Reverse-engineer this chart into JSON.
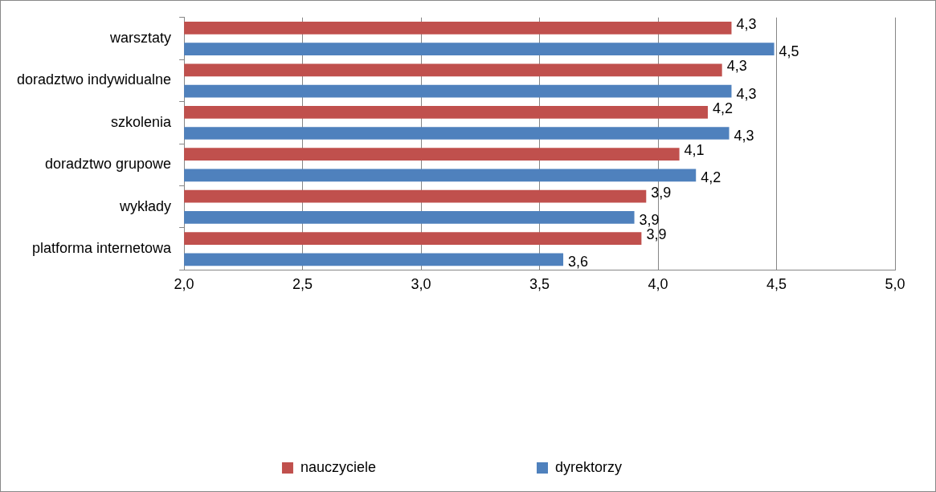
{
  "chart_data": {
    "type": "bar",
    "orientation": "horizontal",
    "categories": [
      "warsztaty",
      "doradztwo indywidualne",
      "szkolenia",
      "doradztwo grupowe",
      "wykłady",
      "platforma internetowa"
    ],
    "series": [
      {
        "name": "nauczyciele",
        "color": "#c0504d",
        "values": [
          4.31,
          4.27,
          4.21,
          4.09,
          3.95,
          3.93
        ],
        "value_labels": [
          "4,3",
          "4,3",
          "4,2",
          "4,1",
          "3,9",
          "3,9"
        ]
      },
      {
        "name": "dyrektorzy",
        "color": "#4f81bd",
        "values": [
          4.49,
          4.31,
          4.3,
          4.16,
          3.9,
          3.6
        ],
        "value_labels": [
          "4,5",
          "4,3",
          "4,3",
          "4,2",
          "3,9",
          "3,6"
        ]
      }
    ],
    "xlim": [
      2,
      5
    ],
    "xticks": [
      {
        "value": 2,
        "label": "2,0"
      },
      {
        "value": 2.5,
        "label": "2,5"
      },
      {
        "value": 3,
        "label": "3,0"
      },
      {
        "value": 3.5,
        "label": "3,5"
      },
      {
        "value": 4,
        "label": "4,0"
      },
      {
        "value": 4.5,
        "label": "4,5"
      },
      {
        "value": 5,
        "label": "5,0"
      }
    ],
    "grid": "x",
    "legend": "bottom"
  }
}
